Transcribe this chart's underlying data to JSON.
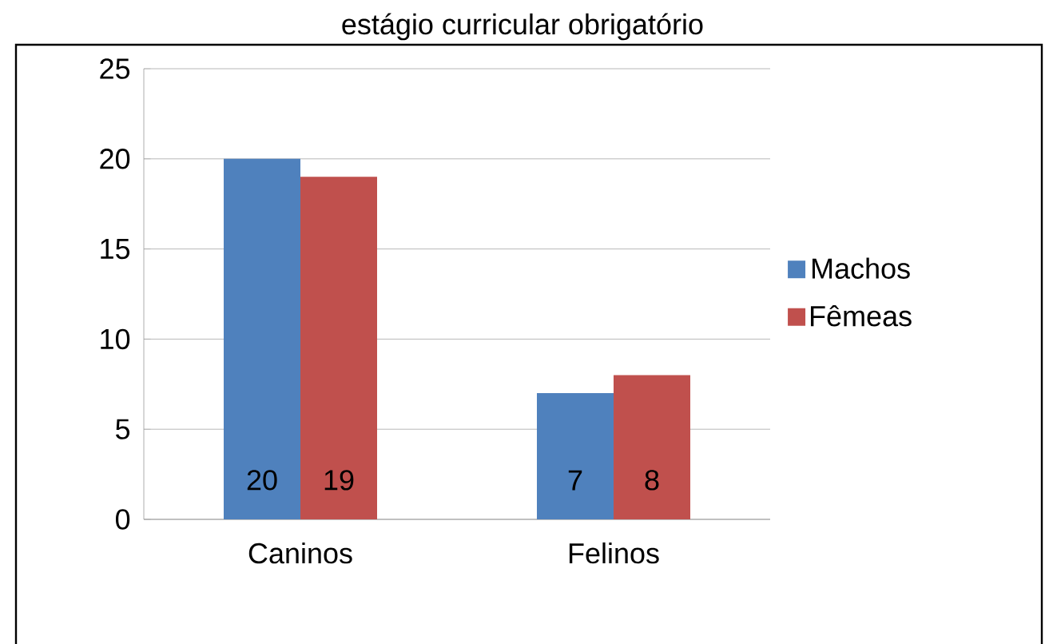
{
  "chart_data": {
    "type": "bar",
    "title": "estágio curricular obrigatório",
    "categories": [
      "Caninos",
      "Felinos"
    ],
    "series": [
      {
        "name": "Machos",
        "color": "#4f81bd",
        "values": [
          20,
          7
        ]
      },
      {
        "name": "Fêmeas",
        "color": "#c0504d",
        "values": [
          19,
          8
        ]
      }
    ],
    "ylim": [
      0,
      25
    ],
    "yticks": [
      0,
      5,
      10,
      15,
      20,
      25
    ],
    "grid": "y",
    "legend": "right",
    "data_labels": true
  }
}
